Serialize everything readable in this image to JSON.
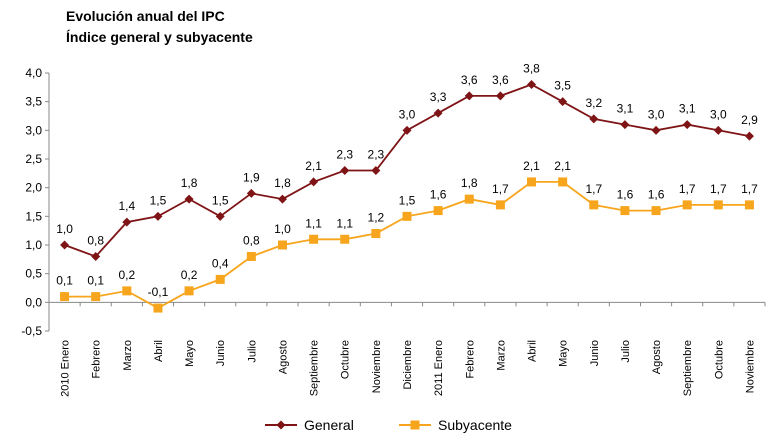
{
  "chart_data": {
    "type": "line",
    "title": "Evolución anual del IPC",
    "subtitle": "Índice general y subyacente",
    "categories": [
      "2010 Enero",
      "Febrero",
      "Marzo",
      "Abril",
      "Mayo",
      "Junio",
      "Julio",
      "Agosto",
      "Septiembre",
      "Octubre",
      "Noviembre",
      "Diciembre",
      "2011 Enero",
      "Febrero",
      "Marzo",
      "Abril",
      "Mayo",
      "Junio",
      "Julio",
      "Agosto",
      "Septiembre",
      "Octubre",
      "Noviembre"
    ],
    "ylim": [
      -0.5,
      4.0
    ],
    "yticks": [
      "-0,5",
      "0,0",
      "0,5",
      "1,0",
      "1,5",
      "2,0",
      "2,5",
      "3,0",
      "3,5",
      "4,0"
    ],
    "ytick_values": [
      -0.5,
      0,
      0.5,
      1,
      1.5,
      2,
      2.5,
      3,
      3.5,
      4
    ],
    "legend_position": "bottom",
    "grid": false,
    "series": [
      {
        "name": "General",
        "color": "#7f1416",
        "marker": "diamond",
        "values": [
          1.0,
          0.8,
          1.4,
          1.5,
          1.8,
          1.5,
          1.9,
          1.8,
          2.1,
          2.3,
          2.3,
          3.0,
          3.3,
          3.6,
          3.6,
          3.8,
          3.5,
          3.2,
          3.1,
          3.0,
          3.1,
          3.0,
          2.9
        ],
        "labels": [
          "1,0",
          "0,8",
          "1,4",
          "1,5",
          "1,8",
          "1,5",
          "1,9",
          "1,8",
          "2,1",
          "2,3",
          "2,3",
          "3,0",
          "3,3",
          "3,6",
          "3,6",
          "3,8",
          "3,5",
          "3,2",
          "3,1",
          "3,0",
          "3,1",
          "3,0",
          "2,9"
        ]
      },
      {
        "name": "Subyacente",
        "color": "#f7a51c",
        "marker": "square",
        "values": [
          0.1,
          0.1,
          0.2,
          -0.1,
          0.2,
          0.4,
          0.8,
          1.0,
          1.1,
          1.1,
          1.2,
          1.5,
          1.6,
          1.8,
          1.7,
          2.1,
          2.1,
          1.7,
          1.6,
          1.6,
          1.7,
          1.7,
          1.7
        ],
        "labels": [
          "0,1",
          "0,1",
          "0,2",
          "-0,1",
          "0,2",
          "0,4",
          "0,8",
          "1,0",
          "1,1",
          "1,1",
          "1,2",
          "1,5",
          "1,6",
          "1,8",
          "1,7",
          "2,1",
          "2,1",
          "1,7",
          "1,6",
          "1,6",
          "1,7",
          "1,7",
          "1,7"
        ]
      }
    ]
  }
}
